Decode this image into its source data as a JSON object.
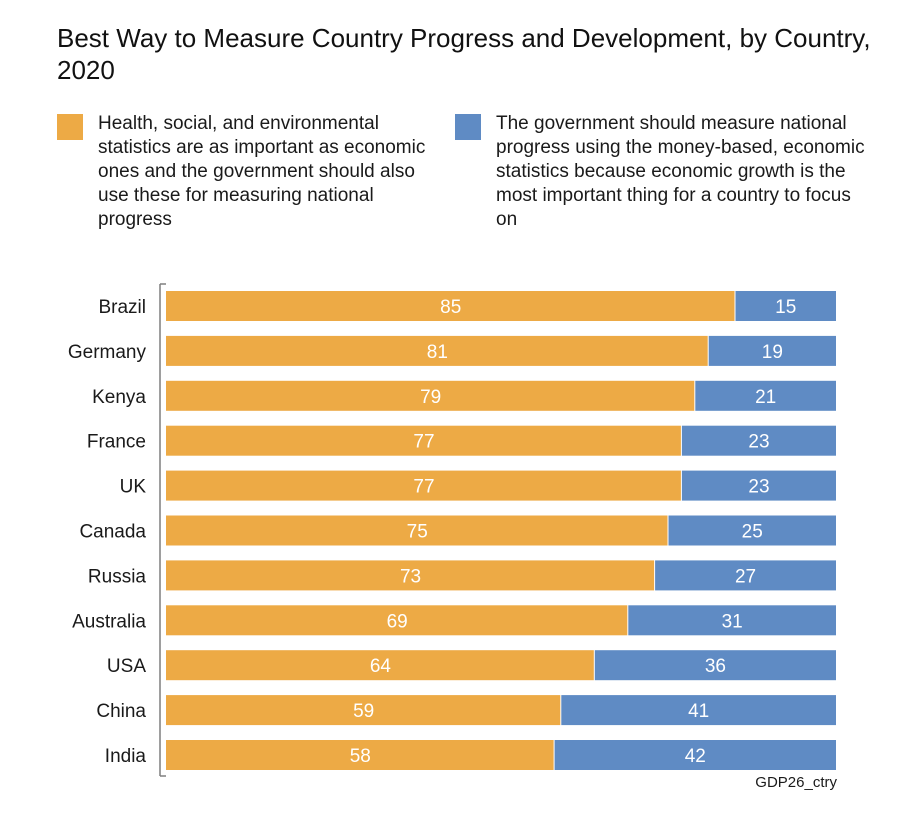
{
  "chart_data": {
    "type": "bar",
    "orientation": "horizontal",
    "stacked": true,
    "title": "Best Way to Measure Country Progress and Development, by Country, 2020",
    "categories": [
      "Brazil",
      "Germany",
      "Kenya",
      "France",
      "UK",
      "Canada",
      "Russia",
      "Australia",
      "USA",
      "China",
      "India"
    ],
    "series": [
      {
        "name": "Health, social, and environmental statistics are as important as economic ones and the government should also use these for measuring national progress",
        "color": "#EDAA45",
        "values": [
          85,
          81,
          79,
          77,
          77,
          75,
          73,
          69,
          64,
          59,
          58
        ]
      },
      {
        "name": "The government should measure national progress using the money-based, economic statistics because economic growth is the most important thing for a country to focus on",
        "color": "#5F8BC4",
        "values": [
          15,
          19,
          21,
          23,
          23,
          25,
          27,
          31,
          36,
          41,
          42
        ]
      }
    ],
    "xlim": [
      0,
      100
    ],
    "grid": false,
    "legend_position": "top",
    "source_label": "GDP26_ctry"
  }
}
